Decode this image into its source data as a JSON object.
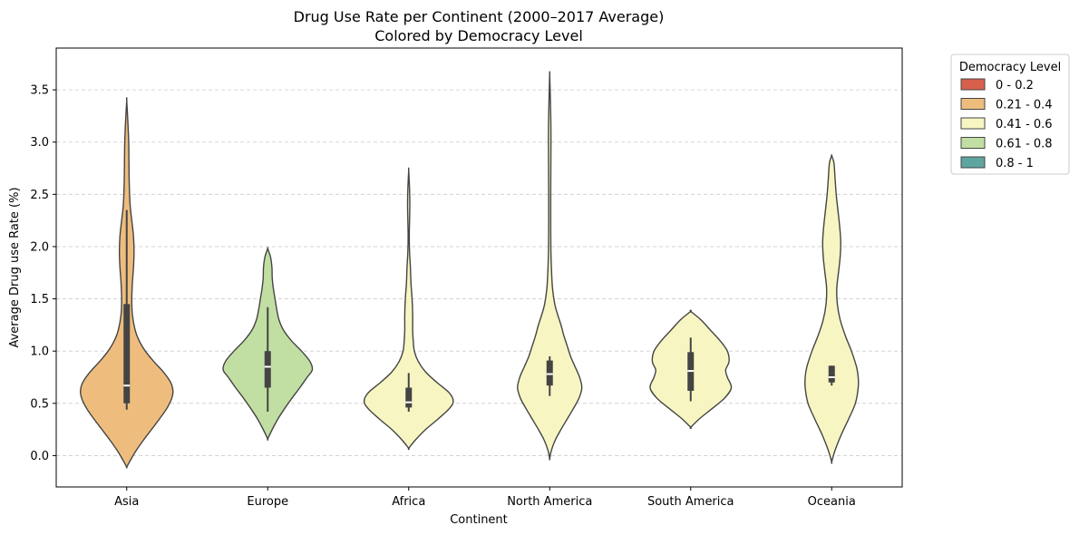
{
  "chart_data": {
    "type": "violin",
    "title": "Drug Use Rate per Continent (2000–2017 Average)",
    "subtitle": "Colored by Democracy Level",
    "xlabel": "Continent",
    "ylabel": "Average Drug use Rate (%)",
    "ylim": [
      -0.3,
      3.9
    ],
    "yticks": [
      "0.0",
      "0.5",
      "1.0",
      "1.5",
      "2.0",
      "2.5",
      "3.0",
      "3.5"
    ],
    "grid": "horizontal dashed",
    "legend": {
      "title": "Democracy Level",
      "placement": "outside upper-right",
      "entries": [
        {
          "label": "0 - 0.2",
          "color": "#d7604d"
        },
        {
          "label": "0.21 - 0.4",
          "color": "#eebd7e"
        },
        {
          "label": "0.41 - 0.6",
          "color": "#f7f6c2"
        },
        {
          "label": "0.61 - 0.8",
          "color": "#c2dfa3"
        },
        {
          "label": "0.8 - 1",
          "color": "#5fa59f"
        }
      ]
    },
    "categories": [
      "Asia",
      "Europe",
      "Africa",
      "North America",
      "South America",
      "Oceania"
    ],
    "series": [
      {
        "category": "Asia",
        "color": "#eebd7e",
        "box": {
          "whisker_low": 0.44,
          "q1": 0.5,
          "median": 0.67,
          "q3": 1.45,
          "whisker_high": 2.35
        },
        "profile": [
          [
            -0.11,
            0
          ],
          [
            -0.05,
            0.06
          ],
          [
            0.05,
            0.17
          ],
          [
            0.15,
            0.3
          ],
          [
            0.25,
            0.44
          ],
          [
            0.35,
            0.58
          ],
          [
            0.45,
            0.71
          ],
          [
            0.55,
            0.8
          ],
          [
            0.62,
            0.82
          ],
          [
            0.7,
            0.78
          ],
          [
            0.8,
            0.65
          ],
          [
            0.9,
            0.48
          ],
          [
            1.0,
            0.33
          ],
          [
            1.1,
            0.22
          ],
          [
            1.2,
            0.15
          ],
          [
            1.35,
            0.1
          ],
          [
            1.5,
            0.09
          ],
          [
            1.65,
            0.1
          ],
          [
            1.8,
            0.12
          ],
          [
            1.95,
            0.13
          ],
          [
            2.1,
            0.12
          ],
          [
            2.25,
            0.09
          ],
          [
            2.4,
            0.06
          ],
          [
            2.6,
            0.045
          ],
          [
            2.8,
            0.04
          ],
          [
            3.0,
            0.035
          ],
          [
            3.2,
            0.02
          ],
          [
            3.4,
            0
          ]
        ]
      },
      {
        "category": "Europe",
        "color": "#c2dfa3",
        "box": {
          "whisker_low": 0.42,
          "q1": 0.65,
          "median": 0.85,
          "q3": 1.0,
          "whisker_high": 1.42
        },
        "profile": [
          [
            0.16,
            0
          ],
          [
            0.25,
            0.08
          ],
          [
            0.35,
            0.18
          ],
          [
            0.45,
            0.3
          ],
          [
            0.55,
            0.43
          ],
          [
            0.65,
            0.57
          ],
          [
            0.75,
            0.7
          ],
          [
            0.82,
            0.79
          ],
          [
            0.9,
            0.75
          ],
          [
            1.0,
            0.6
          ],
          [
            1.1,
            0.42
          ],
          [
            1.2,
            0.28
          ],
          [
            1.3,
            0.2
          ],
          [
            1.4,
            0.16
          ],
          [
            1.5,
            0.13
          ],
          [
            1.6,
            0.1
          ],
          [
            1.7,
            0.08
          ],
          [
            1.8,
            0.075
          ],
          [
            1.9,
            0.05
          ],
          [
            1.98,
            0
          ]
        ]
      },
      {
        "category": "Africa",
        "color": "#f7f6c2",
        "box": {
          "whisker_low": 0.42,
          "q1": 0.46,
          "median": 0.51,
          "q3": 0.65,
          "whisker_high": 0.79
        },
        "profile": [
          [
            0.07,
            0
          ],
          [
            0.15,
            0.12
          ],
          [
            0.25,
            0.3
          ],
          [
            0.35,
            0.52
          ],
          [
            0.45,
            0.72
          ],
          [
            0.52,
            0.79
          ],
          [
            0.6,
            0.72
          ],
          [
            0.7,
            0.5
          ],
          [
            0.8,
            0.3
          ],
          [
            0.9,
            0.17
          ],
          [
            1.0,
            0.1
          ],
          [
            1.1,
            0.08
          ],
          [
            1.2,
            0.07
          ],
          [
            1.35,
            0.07
          ],
          [
            1.5,
            0.06
          ],
          [
            1.65,
            0.04
          ],
          [
            1.8,
            0.03
          ],
          [
            1.95,
            0.015
          ],
          [
            2.1,
            0.01
          ],
          [
            2.25,
            0.015
          ],
          [
            2.4,
            0.02
          ],
          [
            2.55,
            0.015
          ],
          [
            2.73,
            0
          ]
        ]
      },
      {
        "category": "North America",
        "color": "#f7f6c2",
        "box": {
          "whisker_low": 0.57,
          "q1": 0.67,
          "median": 0.78,
          "q3": 0.91,
          "whisker_high": 0.95
        },
        "profile": [
          [
            -0.03,
            0
          ],
          [
            0.05,
            0.03
          ],
          [
            0.15,
            0.1
          ],
          [
            0.25,
            0.2
          ],
          [
            0.35,
            0.31
          ],
          [
            0.45,
            0.42
          ],
          [
            0.55,
            0.52
          ],
          [
            0.65,
            0.57
          ],
          [
            0.75,
            0.53
          ],
          [
            0.85,
            0.45
          ],
          [
            0.95,
            0.37
          ],
          [
            1.05,
            0.31
          ],
          [
            1.15,
            0.25
          ],
          [
            1.25,
            0.2
          ],
          [
            1.35,
            0.14
          ],
          [
            1.45,
            0.09
          ],
          [
            1.6,
            0.05
          ],
          [
            1.8,
            0.03
          ],
          [
            2.0,
            0.02
          ],
          [
            2.25,
            0.018
          ],
          [
            2.5,
            0.018
          ],
          [
            2.75,
            0.02
          ],
          [
            3.0,
            0.022
          ],
          [
            3.2,
            0.02
          ],
          [
            3.45,
            0.01
          ],
          [
            3.65,
            0
          ]
        ]
      },
      {
        "category": "South America",
        "color": "#f7f6c2",
        "box": {
          "whisker_low": 0.52,
          "q1": 0.62,
          "median": 0.81,
          "q3": 0.99,
          "whisker_high": 1.13
        },
        "profile": [
          [
            0.27,
            0
          ],
          [
            0.35,
            0.15
          ],
          [
            0.45,
            0.38
          ],
          [
            0.55,
            0.6
          ],
          [
            0.65,
            0.72
          ],
          [
            0.75,
            0.65
          ],
          [
            0.82,
            0.62
          ],
          [
            0.9,
            0.68
          ],
          [
            1.0,
            0.65
          ],
          [
            1.1,
            0.52
          ],
          [
            1.2,
            0.35
          ],
          [
            1.3,
            0.18
          ],
          [
            1.38,
            0
          ]
        ]
      },
      {
        "category": "Oceania",
        "color": "#f7f6c2",
        "box": {
          "whisker_low": 0.67,
          "q1": 0.7,
          "median": 0.75,
          "q3": 0.86,
          "whisker_high": 0.86
        },
        "profile": [
          [
            -0.06,
            0
          ],
          [
            0.05,
            0.06
          ],
          [
            0.2,
            0.17
          ],
          [
            0.35,
            0.3
          ],
          [
            0.5,
            0.42
          ],
          [
            0.65,
            0.47
          ],
          [
            0.75,
            0.47
          ],
          [
            0.85,
            0.44
          ],
          [
            1.0,
            0.35
          ],
          [
            1.15,
            0.24
          ],
          [
            1.3,
            0.15
          ],
          [
            1.45,
            0.1
          ],
          [
            1.6,
            0.09
          ],
          [
            1.75,
            0.12
          ],
          [
            1.9,
            0.15
          ],
          [
            2.05,
            0.16
          ],
          [
            2.2,
            0.14
          ],
          [
            2.35,
            0.11
          ],
          [
            2.5,
            0.08
          ],
          [
            2.65,
            0.06
          ],
          [
            2.8,
            0.04
          ],
          [
            2.87,
            0
          ]
        ]
      }
    ]
  }
}
